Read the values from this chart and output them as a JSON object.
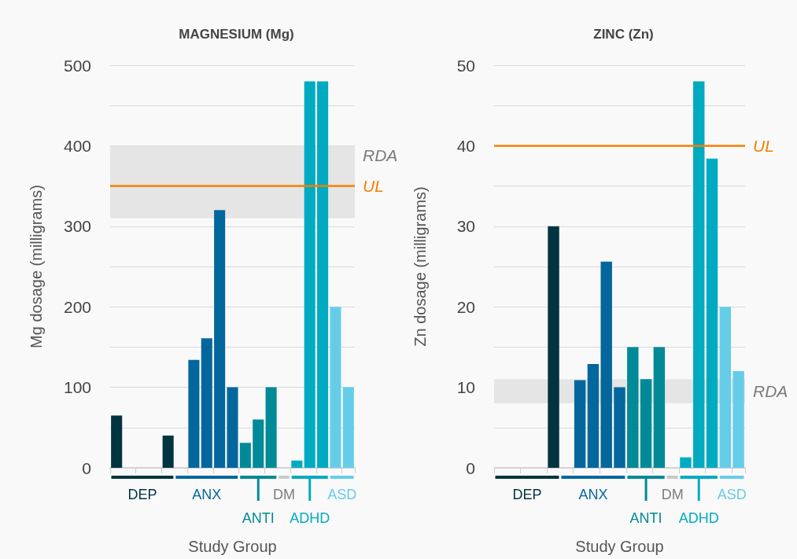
{
  "chart_data": [
    {
      "type": "bar",
      "title": "MAGNESIUM (Mg)",
      "xlabel": "Study Group",
      "ylabel": "Mg dosage (milligrams)",
      "categories": [
        null,
        null,
        null,
        null,
        null,
        null,
        null,
        null,
        null,
        null,
        null,
        null,
        null,
        null,
        null,
        null,
        null,
        null,
        null
      ],
      "legend": "bottom",
      "series": [
        {
          "name": "DEP",
          "color": "#013440",
          "values": [
            65,
            null,
            null,
            null,
            40,
            null,
            null,
            null,
            null,
            null,
            null,
            null,
            null,
            null,
            null,
            null,
            null,
            null,
            null
          ]
        },
        {
          "name": "ANX",
          "color": "#03679d",
          "values": [
            null,
            null,
            null,
            null,
            null,
            null,
            134,
            161,
            320,
            100,
            null,
            null,
            null,
            null,
            null,
            null,
            null,
            null,
            null
          ]
        },
        {
          "name": "ANTI",
          "color": "#008a98",
          "values": [
            null,
            null,
            null,
            null,
            null,
            null,
            null,
            null,
            null,
            null,
            31,
            60,
            100,
            null,
            null,
            null,
            null,
            null,
            null
          ]
        },
        {
          "name": "DM",
          "color": "#c9c9c9",
          "values": [
            null,
            null,
            null,
            null,
            null,
            null,
            null,
            null,
            null,
            null,
            null,
            null,
            null,
            null,
            null,
            null,
            null,
            null,
            null
          ]
        },
        {
          "name": "ADHD",
          "color": "#00abc1",
          "values": [
            null,
            null,
            null,
            null,
            null,
            null,
            null,
            null,
            null,
            null,
            null,
            null,
            null,
            null,
            9,
            480,
            480,
            null,
            null
          ]
        },
        {
          "name": "ASD",
          "color": "#66cde9",
          "values": [
            null,
            null,
            null,
            null,
            null,
            null,
            null,
            null,
            null,
            null,
            null,
            null,
            null,
            null,
            null,
            null,
            null,
            200,
            100
          ]
        }
      ],
      "ylim": [
        0,
        500
      ],
      "yticks": [
        0,
        {
          "value": 50,
          "label": null
        },
        100,
        {
          "value": 150,
          "label": null
        },
        200,
        {
          "value": 250,
          "label": null
        },
        300,
        {
          "value": 350,
          "label": null
        },
        400,
        {
          "value": 450,
          "label": null
        },
        500
      ],
      "grid": "y",
      "ref_lines": [
        {
          "axis": "y",
          "value": 350,
          "label": "UL",
          "color": "#f57f00"
        }
      ],
      "bands": [
        {
          "axis": "y",
          "from": 310,
          "to": 400,
          "label": "RDA",
          "color": "#e5e5e5"
        }
      ]
    },
    {
      "type": "bar",
      "title": "ZINC (Zn)",
      "xlabel": "Study Group",
      "ylabel": "Zn dosage (milligrams)",
      "categories": [
        null,
        null,
        null,
        null,
        null,
        null,
        null,
        null,
        null,
        null,
        null,
        null,
        null,
        null,
        null,
        null,
        null,
        null,
        null
      ],
      "legend": "bottom",
      "series": [
        {
          "name": "DEP",
          "color": "#013440",
          "values": [
            null,
            null,
            null,
            null,
            30,
            null,
            null,
            null,
            null,
            null,
            null,
            null,
            null,
            null,
            null,
            null,
            null,
            null,
            null
          ]
        },
        {
          "name": "ANX",
          "color": "#03679d",
          "values": [
            null,
            null,
            null,
            null,
            null,
            null,
            10.9,
            12.9,
            25.6,
            10,
            null,
            null,
            null,
            null,
            null,
            null,
            null,
            null,
            null
          ]
        },
        {
          "name": "ANTI",
          "color": "#008a98",
          "values": [
            null,
            null,
            null,
            null,
            null,
            null,
            null,
            null,
            null,
            null,
            15,
            11,
            15,
            null,
            null,
            null,
            null,
            null,
            null
          ]
        },
        {
          "name": "DM",
          "color": "#c9c9c9",
          "values": [
            null,
            null,
            null,
            null,
            null,
            null,
            null,
            null,
            null,
            null,
            null,
            null,
            null,
            null,
            null,
            null,
            null,
            null,
            null
          ]
        },
        {
          "name": "ADHD",
          "color": "#00abc1",
          "values": [
            null,
            null,
            null,
            null,
            null,
            null,
            null,
            null,
            null,
            null,
            null,
            null,
            null,
            null,
            1.3,
            48,
            38.4,
            null,
            null
          ]
        },
        {
          "name": "ASD",
          "color": "#66cde9",
          "values": [
            null,
            null,
            null,
            null,
            null,
            null,
            null,
            null,
            null,
            null,
            null,
            null,
            null,
            null,
            null,
            null,
            null,
            20,
            12
          ]
        }
      ],
      "ylim": [
        0,
        50
      ],
      "yticks": [
        0,
        {
          "value": 5,
          "label": null
        },
        10,
        {
          "value": 15,
          "label": null
        },
        20,
        {
          "value": 25,
          "label": null
        },
        30,
        {
          "value": 35,
          "label": null
        },
        40,
        {
          "value": 45,
          "label": null
        },
        50
      ],
      "grid": "y",
      "ref_lines": [
        {
          "axis": "y",
          "value": 40,
          "label": "UL",
          "color": "#f57f00"
        }
      ],
      "bands": [
        {
          "axis": "y",
          "from": 8,
          "to": 11,
          "label": "RDA",
          "color": "#e5e5e5"
        }
      ]
    }
  ]
}
